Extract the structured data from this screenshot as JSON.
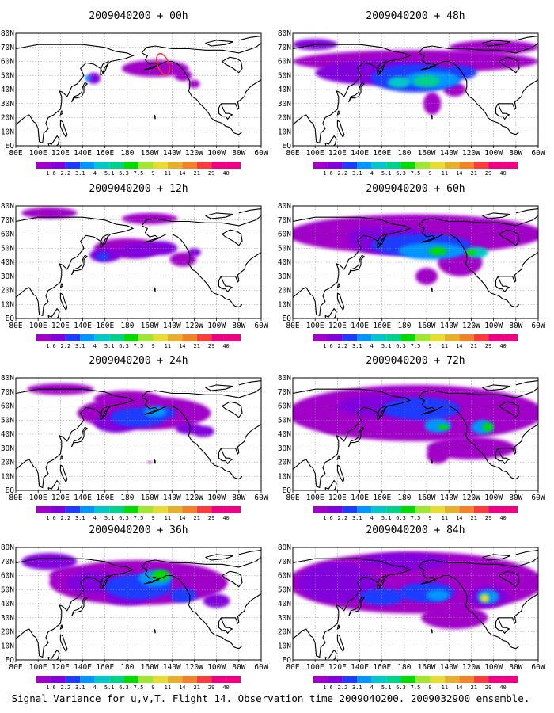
{
  "figure": {
    "caption": "Signal Variance for u,v,T. Flight 14. Observation time 2009040200. 2009032900 ensemble."
  },
  "axes": {
    "x_ticks": [
      "80E",
      "100E",
      "120E",
      "140E",
      "160E",
      "180",
      "160W",
      "140W",
      "120W",
      "100W",
      "80W",
      "60W"
    ],
    "y_ticks": [
      "EQ",
      "10N",
      "20N",
      "30N",
      "40N",
      "50N",
      "60N",
      "70N",
      "80N"
    ]
  },
  "colorbar": {
    "labels": [
      "1.6",
      "2.2",
      "3.1",
      "4",
      "5.1",
      "6.3",
      "7.5",
      "9",
      "11",
      "14",
      "21",
      "29",
      "40"
    ],
    "colors": [
      "#a000c8",
      "#8200dc",
      "#1e3cff",
      "#0096ff",
      "#00c8c8",
      "#00d28c",
      "#00dc00",
      "#a0e632",
      "#e6dc32",
      "#e6af2d",
      "#f08228",
      "#fa3c3c",
      "#f00082"
    ]
  },
  "coastline_color": "#000000",
  "grid_line_color": "#999999",
  "observation_marker_color": "#ff3030",
  "panels": [
    {
      "title": "2009040200 + 00h",
      "lead_hours": 0
    },
    {
      "title": "2009040200 + 48h",
      "lead_hours": 48
    },
    {
      "title": "2009040200 + 12h",
      "lead_hours": 12
    },
    {
      "title": "2009040200 + 60h",
      "lead_hours": 60
    },
    {
      "title": "2009040200 + 24h",
      "lead_hours": 24
    },
    {
      "title": "2009040200 + 72h",
      "lead_hours": 72
    },
    {
      "title": "2009040200 + 36h",
      "lead_hours": 36
    },
    {
      "title": "2009040200 + 84h",
      "lead_hours": 84
    }
  ]
}
